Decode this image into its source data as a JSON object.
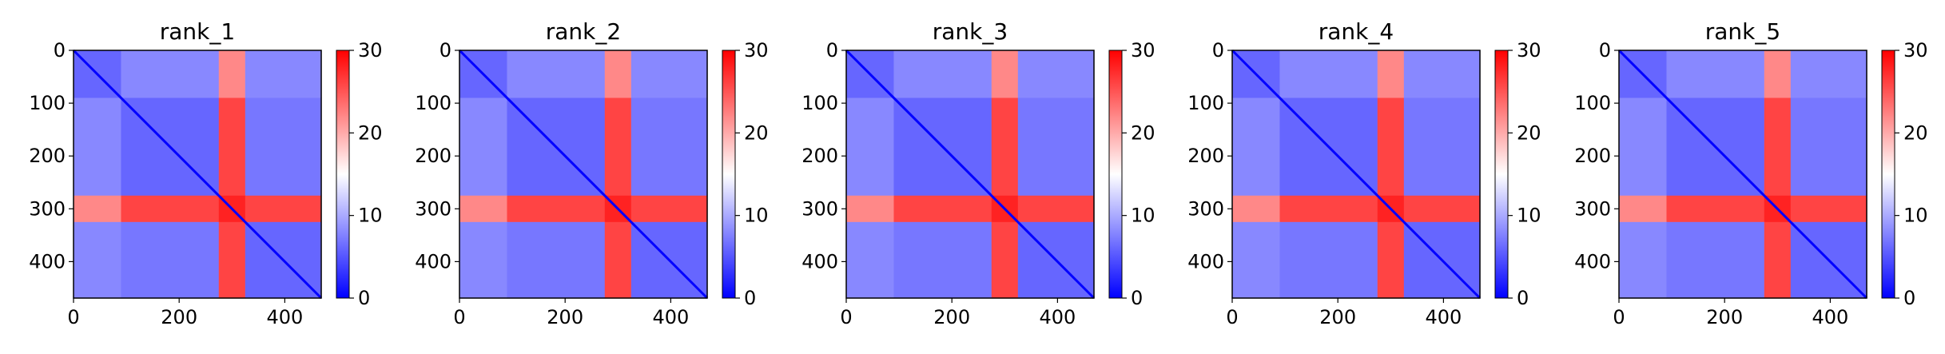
{
  "figure": {
    "panel_count": 5
  },
  "chart_data": [
    {
      "type": "heatmap",
      "title": "rank_1",
      "x_ticks": [
        "0",
        "200",
        "400"
      ],
      "y_ticks": [
        "0",
        "100",
        "200",
        "300",
        "400"
      ],
      "x_range": [
        0,
        469
      ],
      "y_range": [
        0,
        469
      ],
      "colorbar": {
        "ticks": [
          "0",
          "10",
          "20",
          "30"
        ],
        "range": [
          0,
          30
        ],
        "colormap": [
          "#0000ff",
          "#ffffff",
          "#ff0000"
        ]
      },
      "domains": [
        [
          0,
          90
        ],
        [
          90,
          275
        ],
        [
          275,
          325
        ],
        [
          325,
          469
        ]
      ],
      "domain_values": [
        [
          6,
          8,
          22,
          8
        ],
        [
          8,
          6,
          26,
          7
        ],
        [
          22,
          26,
          28,
          26
        ],
        [
          8,
          7,
          26,
          6
        ]
      ]
    },
    {
      "type": "heatmap",
      "title": "rank_2",
      "x_ticks": [
        "0",
        "200",
        "400"
      ],
      "y_ticks": [
        "0",
        "100",
        "200",
        "300",
        "400"
      ],
      "x_range": [
        0,
        469
      ],
      "y_range": [
        0,
        469
      ],
      "colorbar": {
        "ticks": [
          "0",
          "10",
          "20",
          "30"
        ],
        "range": [
          0,
          30
        ],
        "colormap": [
          "#0000ff",
          "#ffffff",
          "#ff0000"
        ]
      },
      "domains": [
        [
          0,
          90
        ],
        [
          90,
          275
        ],
        [
          275,
          325
        ],
        [
          325,
          469
        ]
      ],
      "domain_values": [
        [
          6,
          8,
          22,
          8
        ],
        [
          8,
          6,
          26,
          7
        ],
        [
          22,
          26,
          28,
          26
        ],
        [
          8,
          7,
          26,
          6
        ]
      ]
    },
    {
      "type": "heatmap",
      "title": "rank_3",
      "x_ticks": [
        "0",
        "200",
        "400"
      ],
      "y_ticks": [
        "0",
        "100",
        "200",
        "300",
        "400"
      ],
      "x_range": [
        0,
        469
      ],
      "y_range": [
        0,
        469
      ],
      "colorbar": {
        "ticks": [
          "0",
          "10",
          "20",
          "30"
        ],
        "range": [
          0,
          30
        ],
        "colormap": [
          "#0000ff",
          "#ffffff",
          "#ff0000"
        ]
      },
      "domains": [
        [
          0,
          90
        ],
        [
          90,
          275
        ],
        [
          275,
          325
        ],
        [
          325,
          469
        ]
      ],
      "domain_values": [
        [
          6,
          8,
          22,
          8
        ],
        [
          8,
          6,
          26,
          7
        ],
        [
          22,
          26,
          28,
          26
        ],
        [
          8,
          7,
          26,
          6
        ]
      ]
    },
    {
      "type": "heatmap",
      "title": "rank_4",
      "x_ticks": [
        "0",
        "200",
        "400"
      ],
      "y_ticks": [
        "0",
        "100",
        "200",
        "300",
        "400"
      ],
      "x_range": [
        0,
        469
      ],
      "y_range": [
        0,
        469
      ],
      "colorbar": {
        "ticks": [
          "0",
          "10",
          "20",
          "30"
        ],
        "range": [
          0,
          30
        ],
        "colormap": [
          "#0000ff",
          "#ffffff",
          "#ff0000"
        ]
      },
      "domains": [
        [
          0,
          90
        ],
        [
          90,
          275
        ],
        [
          275,
          325
        ],
        [
          325,
          469
        ]
      ],
      "domain_values": [
        [
          6,
          8,
          22,
          8
        ],
        [
          8,
          6,
          26,
          7
        ],
        [
          22,
          26,
          28,
          26
        ],
        [
          8,
          7,
          26,
          6
        ]
      ]
    },
    {
      "type": "heatmap",
      "title": "rank_5",
      "x_ticks": [
        "0",
        "200",
        "400"
      ],
      "y_ticks": [
        "0",
        "100",
        "200",
        "300",
        "400"
      ],
      "x_range": [
        0,
        469
      ],
      "y_range": [
        0,
        469
      ],
      "colorbar": {
        "ticks": [
          "0",
          "10",
          "20",
          "30"
        ],
        "range": [
          0,
          30
        ],
        "colormap": [
          "#0000ff",
          "#ffffff",
          "#ff0000"
        ]
      },
      "domains": [
        [
          0,
          90
        ],
        [
          90,
          275
        ],
        [
          275,
          325
        ],
        [
          325,
          469
        ]
      ],
      "domain_values": [
        [
          6,
          8,
          22,
          8
        ],
        [
          8,
          6,
          26,
          7
        ],
        [
          22,
          26,
          28,
          26
        ],
        [
          8,
          7,
          26,
          6
        ]
      ]
    }
  ]
}
